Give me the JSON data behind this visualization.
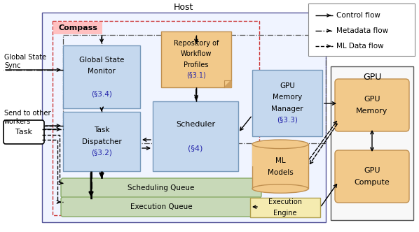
{
  "fig_width": 5.98,
  "fig_height": 3.32,
  "dpi": 100,
  "background": "#ffffff",
  "title": "Host",
  "gpu_label": "GPU",
  "compass_label": "Compass",
  "global_state_sync_label": "Global State\nSync",
  "send_to_other_label": "Send to other\nworkers",
  "colors": {
    "light_blue": "#c5d8ee",
    "light_orange": "#f2c98a",
    "light_green": "#c8d9b8",
    "light_yellow": "#f5ebb0",
    "white": "#ffffff",
    "host_bg": "#f0f4ff",
    "compass_border": "#cc3333",
    "compass_bg": "#ffc0c0",
    "host_border": "#555599",
    "gpu_bg": "#f8f8f8",
    "gpu_border": "#555555",
    "blue_border": "#7799bb",
    "orange_border": "#c09050",
    "green_border": "#88aa66",
    "yellow_border": "#b0a050",
    "black": "#000000",
    "dark_blue": "#2222aa"
  }
}
